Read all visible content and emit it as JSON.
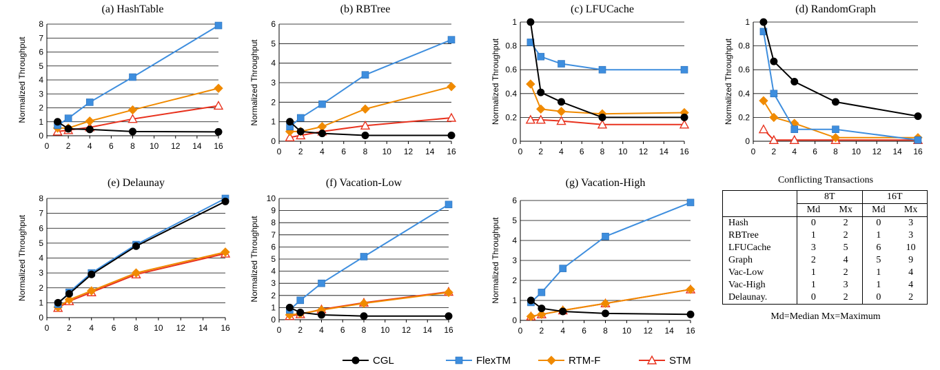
{
  "chart_data": [
    {
      "type": "line",
      "title": "(a)  HashTable",
      "ylabel": "Normalized Throughput",
      "x": [
        1,
        2,
        4,
        8,
        16
      ],
      "xticks": [
        0,
        2,
        4,
        6,
        8,
        10,
        12,
        14,
        16
      ],
      "xlim": [
        0,
        16
      ],
      "ylim": [
        0,
        8
      ],
      "yticks": [
        0,
        1,
        2,
        3,
        4,
        5,
        6,
        7,
        8
      ],
      "grid": true,
      "series": [
        {
          "name": "CGL",
          "values": [
            1.0,
            0.5,
            0.45,
            0.3,
            0.28
          ]
        },
        {
          "name": "FlexTM",
          "values": [
            0.75,
            1.25,
            2.4,
            4.2,
            7.9
          ]
        },
        {
          "name": "RTM-F",
          "values": [
            0.55,
            0.55,
            1.05,
            1.85,
            3.4
          ]
        },
        {
          "name": "STM",
          "values": [
            0.3,
            0.4,
            0.6,
            1.2,
            2.15
          ]
        }
      ]
    },
    {
      "type": "line",
      "title": "(b)  RBTree",
      "ylabel": "Normalized Throughput",
      "x": [
        1,
        2,
        4,
        8,
        16
      ],
      "xticks": [
        0,
        2,
        4,
        6,
        8,
        10,
        12,
        14,
        16
      ],
      "xlim": [
        0,
        16
      ],
      "ylim": [
        0,
        6
      ],
      "yticks": [
        0,
        1,
        2,
        3,
        4,
        5,
        6
      ],
      "grid": true,
      "series": [
        {
          "name": "CGL",
          "values": [
            1.0,
            0.5,
            0.4,
            0.3,
            0.3
          ]
        },
        {
          "name": "FlexTM",
          "values": [
            0.75,
            1.2,
            1.9,
            3.4,
            5.2
          ]
        },
        {
          "name": "RTM-F",
          "values": [
            0.5,
            0.5,
            0.75,
            1.65,
            2.8
          ]
        },
        {
          "name": "STM",
          "values": [
            0.2,
            0.3,
            0.5,
            0.8,
            1.2
          ]
        }
      ]
    },
    {
      "type": "line",
      "title": "(c)  LFUCache",
      "ylabel": "Normalized Throughput",
      "x": [
        1,
        2,
        4,
        8,
        16
      ],
      "xticks": [
        0,
        2,
        4,
        6,
        8,
        10,
        12,
        14,
        16
      ],
      "xlim": [
        0,
        16
      ],
      "ylim": [
        0,
        1
      ],
      "yticks": [
        0,
        0.2,
        0.4,
        0.6,
        0.8,
        1
      ],
      "grid": true,
      "series": [
        {
          "name": "CGL",
          "values": [
            1.0,
            0.41,
            0.33,
            0.2,
            0.2
          ]
        },
        {
          "name": "FlexTM",
          "values": [
            0.83,
            0.71,
            0.65,
            0.6,
            0.6
          ]
        },
        {
          "name": "RTM-F",
          "values": [
            0.48,
            0.27,
            0.25,
            0.23,
            0.24
          ]
        },
        {
          "name": "STM",
          "values": [
            0.18,
            0.18,
            0.17,
            0.14,
            0.14
          ]
        }
      ]
    },
    {
      "type": "line",
      "title": "(d)  RandomGraph",
      "ylabel": "Normalized Throughput",
      "x": [
        1,
        2,
        4,
        8,
        16
      ],
      "xticks": [
        0,
        2,
        4,
        6,
        8,
        10,
        12,
        14,
        16
      ],
      "xlim": [
        0,
        16
      ],
      "ylim": [
        0,
        1
      ],
      "yticks": [
        0,
        0.2,
        0.4,
        0.6,
        0.8,
        1
      ],
      "grid": true,
      "series": [
        {
          "name": "CGL",
          "values": [
            1.0,
            0.67,
            0.5,
            0.33,
            0.21
          ]
        },
        {
          "name": "FlexTM",
          "values": [
            0.92,
            0.4,
            0.1,
            0.1,
            0.01
          ]
        },
        {
          "name": "RTM-F",
          "values": [
            0.34,
            0.2,
            0.15,
            0.03,
            0.03
          ]
        },
        {
          "name": "STM",
          "values": [
            0.1,
            0.01,
            0.01,
            0.01,
            0.01
          ]
        }
      ]
    },
    {
      "type": "line",
      "title": "(e)  Delaunay",
      "ylabel": "Normalized Throughput",
      "x": [
        1,
        2,
        4,
        8,
        16
      ],
      "xticks": [
        0,
        2,
        4,
        6,
        8,
        10,
        12,
        14,
        16
      ],
      "xlim": [
        0,
        16
      ],
      "ylim": [
        0,
        8
      ],
      "yticks": [
        0,
        1,
        2,
        3,
        4,
        5,
        6,
        7,
        8
      ],
      "grid": true,
      "series": [
        {
          "name": "CGL",
          "values": [
            1.0,
            1.6,
            2.9,
            4.8,
            7.8
          ]
        },
        {
          "name": "FlexTM",
          "values": [
            0.9,
            1.7,
            3.0,
            4.9,
            8.0
          ]
        },
        {
          "name": "RTM-F",
          "values": [
            0.7,
            1.2,
            1.8,
            3.0,
            4.4
          ]
        },
        {
          "name": "STM",
          "values": [
            0.65,
            1.1,
            1.7,
            2.9,
            4.3
          ]
        }
      ]
    },
    {
      "type": "line",
      "title": "(f)  Vacation-Low",
      "ylabel": "Normalized Throughput",
      "x": [
        1,
        2,
        4,
        8,
        16
      ],
      "xticks": [
        0,
        2,
        4,
        6,
        8,
        10,
        12,
        14,
        16
      ],
      "xlim": [
        0,
        16
      ],
      "ylim": [
        0,
        10
      ],
      "yticks": [
        0,
        1,
        2,
        3,
        4,
        5,
        6,
        7,
        8,
        9,
        10
      ],
      "grid": true,
      "series": [
        {
          "name": "CGL",
          "values": [
            1.0,
            0.6,
            0.4,
            0.3,
            0.3
          ]
        },
        {
          "name": "FlexTM",
          "values": [
            0.8,
            1.6,
            3.0,
            5.2,
            9.5
          ]
        },
        {
          "name": "RTM-F",
          "values": [
            0.4,
            0.5,
            0.8,
            1.35,
            2.25
          ]
        },
        {
          "name": "STM",
          "values": [
            0.3,
            0.45,
            0.85,
            1.4,
            2.3
          ]
        }
      ]
    },
    {
      "type": "line",
      "title": "(g)  Vacation-High",
      "ylabel": "Normalized Throughput",
      "x": [
        1,
        2,
        4,
        8,
        16
      ],
      "xticks": [
        0,
        2,
        4,
        6,
        8,
        10,
        12,
        14,
        16
      ],
      "xlim": [
        0,
        16
      ],
      "ylim": [
        0,
        6
      ],
      "yticks": [
        0,
        1,
        2,
        3,
        4,
        5,
        6
      ],
      "grid": true,
      "series": [
        {
          "name": "CGL",
          "values": [
            1.0,
            0.6,
            0.45,
            0.35,
            0.3
          ]
        },
        {
          "name": "FlexTM",
          "values": [
            0.9,
            1.4,
            2.6,
            4.2,
            5.9
          ]
        },
        {
          "name": "RTM-F",
          "values": [
            0.2,
            0.3,
            0.5,
            0.85,
            1.55
          ]
        },
        {
          "name": "STM",
          "values": [
            0.2,
            0.3,
            0.5,
            0.85,
            1.55
          ]
        }
      ]
    }
  ],
  "legend": [
    {
      "name": "CGL",
      "color": "#000000",
      "marker": "circle"
    },
    {
      "name": "FlexTM",
      "color": "#3E8EDE",
      "marker": "square"
    },
    {
      "name": "RTM-F",
      "color": "#F08A00",
      "marker": "diamond"
    },
    {
      "name": "STM",
      "color": "#E8321E",
      "marker": "triangle"
    }
  ],
  "conflicts": {
    "caption": "Conflicting Transactions",
    "groups": [
      "8T",
      "16T"
    ],
    "subheaders": [
      "Md",
      "Mx",
      "Md",
      "Mx"
    ],
    "rows": [
      {
        "label": "Hash",
        "values": [
          "0",
          "2",
          "0",
          "3"
        ]
      },
      {
        "label": "RBTree",
        "values": [
          "1",
          "2",
          "1",
          "3"
        ]
      },
      {
        "label": "LFUCache",
        "values": [
          "3",
          "5",
          "6",
          "10"
        ]
      },
      {
        "label": "Graph",
        "values": [
          "2",
          "4",
          "5",
          "9"
        ]
      },
      {
        "label": "Vac-Low",
        "values": [
          "1",
          "2",
          "1",
          "4"
        ]
      },
      {
        "label": "Vac-High",
        "values": [
          "1",
          "3",
          "1",
          "4"
        ]
      },
      {
        "label": "Delaunay.",
        "values": [
          "0",
          "2",
          "0",
          "2"
        ]
      }
    ],
    "note": "Md=Median Mx=Maximum"
  }
}
